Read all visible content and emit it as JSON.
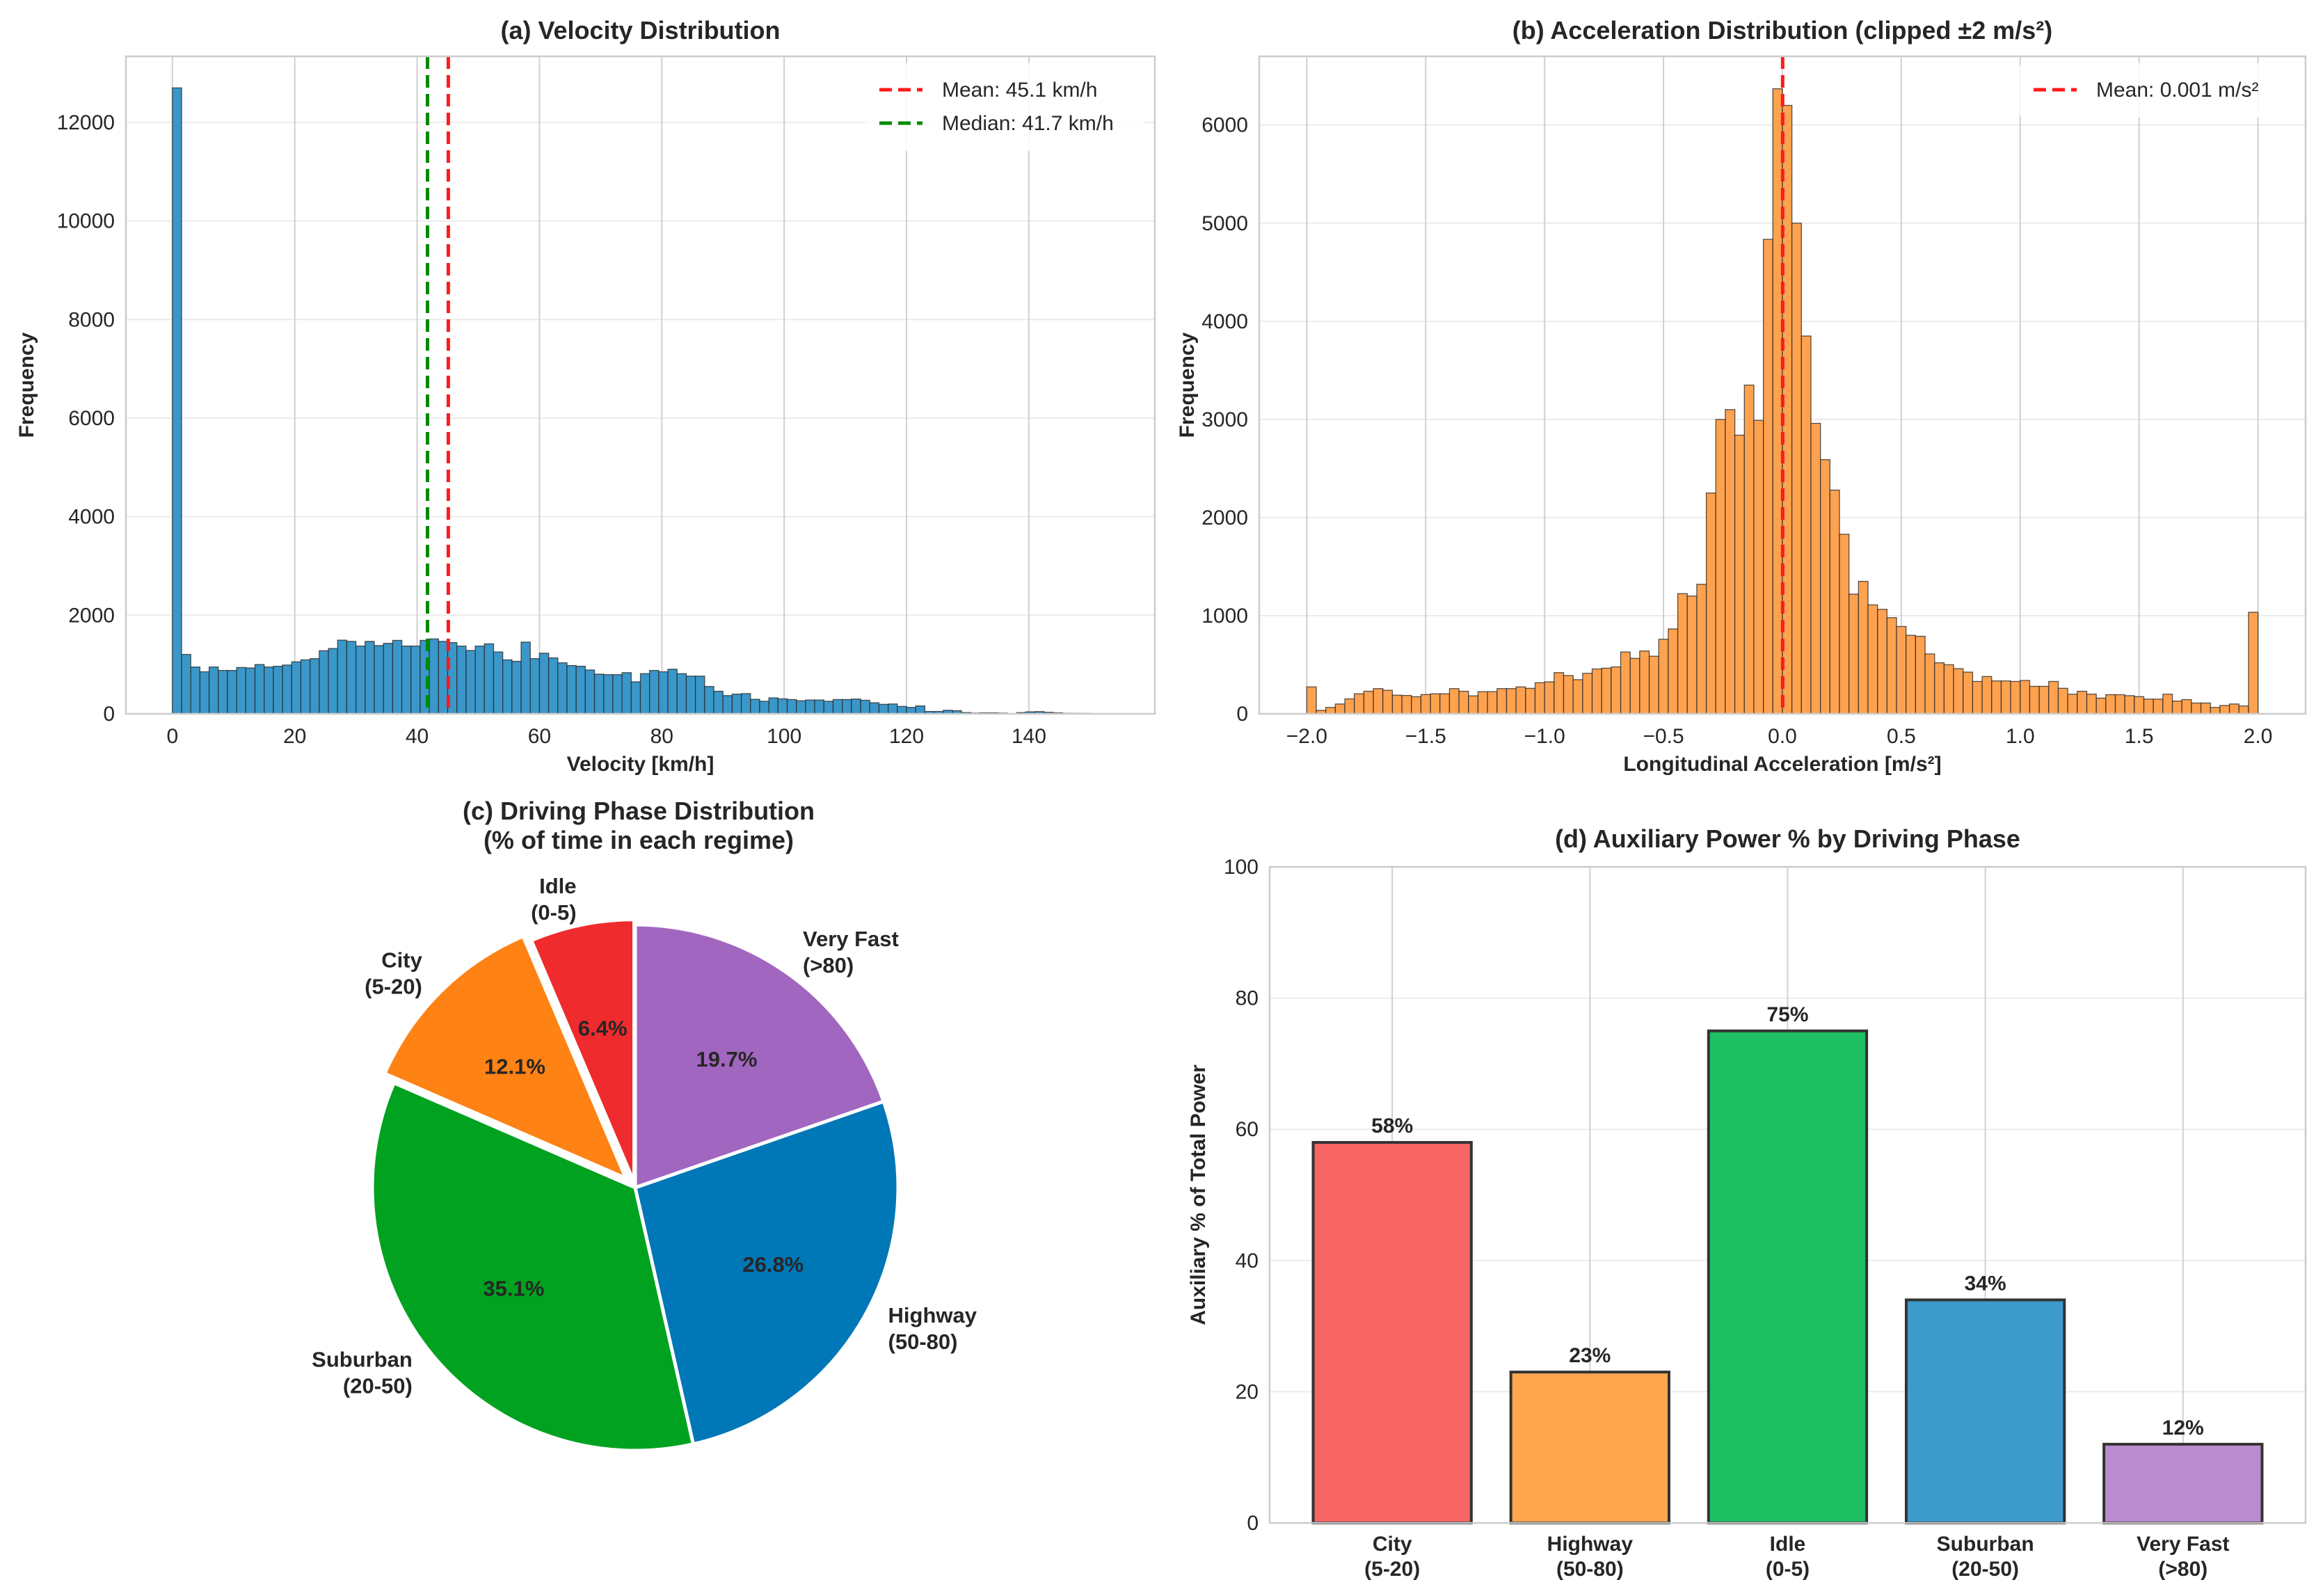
{
  "chart_data": [
    {
      "type": "bar",
      "kind": "histogram",
      "title": "(a) Velocity Distribution",
      "xlabel": "Velocity [km/h]",
      "ylabel": "Frequency",
      "bin_start": 0,
      "bin_width": 1.5,
      "values": [
        12700,
        1205,
        950,
        853,
        950,
        880,
        880,
        940,
        930,
        1000,
        950,
        965,
        990,
        1055,
        1095,
        1120,
        1280,
        1325,
        1495,
        1470,
        1375,
        1470,
        1385,
        1430,
        1490,
        1375,
        1375,
        1490,
        1520,
        1470,
        1445,
        1375,
        1285,
        1375,
        1420,
        1255,
        1095,
        1065,
        1455,
        1120,
        1230,
        1135,
        1035,
        980,
        965,
        890,
        805,
        795,
        795,
        835,
        650,
        815,
        880,
        853,
        905,
        815,
        765,
        765,
        555,
        458,
        370,
        400,
        410,
        295,
        255,
        323,
        304,
        290,
        265,
        280,
        280,
        255,
        290,
        290,
        300,
        275,
        225,
        193,
        200,
        150,
        130,
        160,
        48,
        48,
        72,
        63,
        25,
        15,
        20,
        20,
        15,
        0,
        25,
        40,
        45,
        30,
        20,
        12,
        10,
        8,
        5,
        3
      ],
      "xlim": [
        -7.6,
        160.6
      ],
      "ylim": [
        0,
        13340
      ],
      "xticks": [
        "0",
        "20",
        "40",
        "60",
        "80",
        "100",
        "120",
        "140"
      ],
      "xtick_values": [
        0,
        20,
        40,
        60,
        80,
        100,
        120,
        140
      ],
      "yticks": [
        "0",
        "2000",
        "4000",
        "6000",
        "8000",
        "10000",
        "12000"
      ],
      "ytick_values": [
        0,
        2000,
        4000,
        6000,
        8000,
        10000,
        12000
      ],
      "color": "#3a97c9",
      "grid": true,
      "legend": "top-right",
      "lines": [
        {
          "label": "Mean: 45.1 km/h",
          "x": 45.1,
          "color": "#ff1a1a"
        },
        {
          "label": "Median: 41.7 km/h",
          "x": 41.7,
          "color": "#008a00"
        }
      ]
    },
    {
      "type": "bar",
      "kind": "histogram",
      "title": "(b) Acceleration Distribution (clipped ±2 m/s²)",
      "xlabel": "Longitudinal Acceleration [m/s²]",
      "ylabel": "Frequency",
      "bin_start": -2.0,
      "bin_width": 0.04,
      "values": [
        274,
        35,
        65,
        100,
        152,
        204,
        230,
        257,
        240,
        190,
        187,
        174,
        196,
        204,
        204,
        257,
        230,
        183,
        226,
        226,
        257,
        257,
        274,
        260,
        317,
        326,
        420,
        390,
        348,
        413,
        457,
        465,
        478,
        630,
        565,
        640,
        587,
        760,
        865,
        1225,
        1200,
        1320,
        2250,
        3000,
        3100,
        2840,
        3350,
        2990,
        4835,
        6370,
        6200,
        5000,
        3850,
        2960,
        2590,
        2280,
        1830,
        1220,
        1350,
        1110,
        1065,
        980,
        890,
        800,
        790,
        610,
        520,
        500,
        460,
        425,
        330,
        380,
        335,
        335,
        330,
        340,
        280,
        280,
        330,
        260,
        200,
        230,
        200,
        160,
        195,
        195,
        185,
        175,
        150,
        150,
        200,
        130,
        145,
        110,
        110,
        65,
        85,
        100,
        80,
        1035
      ],
      "xlim": [
        -2.2,
        2.2
      ],
      "ylim": [
        0,
        6700
      ],
      "xticks": [
        "−2.0",
        "−1.5",
        "−1.0",
        "−0.5",
        "0.0",
        "0.5",
        "1.0",
        "1.5",
        "2.0"
      ],
      "xtick_values": [
        -2.0,
        -1.5,
        -1.0,
        -0.5,
        0.0,
        0.5,
        1.0,
        1.5,
        2.0
      ],
      "yticks": [
        "0",
        "1000",
        "2000",
        "3000",
        "4000",
        "5000",
        "6000"
      ],
      "ytick_values": [
        0,
        1000,
        2000,
        3000,
        4000,
        5000,
        6000
      ],
      "color": "#ffa24f",
      "grid": true,
      "legend": "top-right",
      "lines": [
        {
          "label": "Mean: 0.001 m/s²",
          "x": 0.001,
          "color": "#ff1a1a"
        }
      ]
    },
    {
      "type": "pie",
      "title": [
        "(c) Driving Phase Distribution",
        "(% of time in each regime)"
      ],
      "labels": [
        [
          "Idle",
          "(0-5)"
        ],
        [
          "City",
          "(5-20)"
        ],
        [
          "Suburban",
          "(20-50)"
        ],
        [
          "Highway",
          "(50-80)"
        ],
        [
          "Very Fast",
          "(>80)"
        ]
      ],
      "values": [
        6.4,
        12.1,
        35.1,
        26.8,
        19.7
      ],
      "pct_labels": [
        "6.4%",
        "12.1%",
        "35.1%",
        "26.8%",
        "19.7%"
      ],
      "colors": [
        "#ef2b2d",
        "#ff8214",
        "#00a220",
        "#0077b6",
        "#a166bf"
      ],
      "explode": [
        0.02,
        0.05,
        0,
        0,
        0
      ],
      "start_angle": 90,
      "direction": "counterclockwise"
    },
    {
      "type": "bar",
      "title": "(d) Auxiliary Power % by Driving Phase",
      "xlabel": "",
      "ylabel": "Auxiliary % of Total Power",
      "categories": [
        [
          "City",
          "(5-20)"
        ],
        [
          "Highway",
          "(50-80)"
        ],
        [
          "Idle",
          "(0-5)"
        ],
        [
          "Suburban",
          "(20-50)"
        ],
        [
          "Very Fast",
          "(>80)"
        ]
      ],
      "values": [
        58,
        23,
        75,
        34,
        12
      ],
      "value_labels": [
        "58%",
        "23%",
        "75%",
        "34%",
        "12%"
      ],
      "colors": [
        "#f86565",
        "#ffa64f",
        "#1ebf62",
        "#3d9bcc",
        "#bb8bcf"
      ],
      "ylim": [
        0,
        100
      ],
      "yticks": [
        "0",
        "20",
        "40",
        "60",
        "80",
        "100"
      ],
      "ytick_values": [
        0,
        20,
        40,
        60,
        80,
        100
      ],
      "grid": true
    }
  ]
}
